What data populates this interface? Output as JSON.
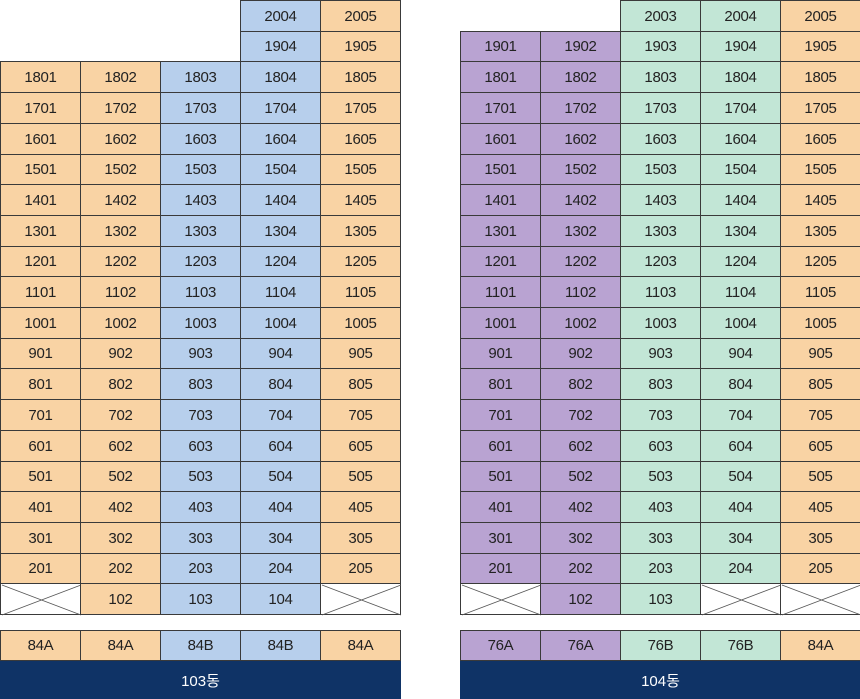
{
  "colors": {
    "orange": "#f9d3a4",
    "blue": "#b7cfec",
    "purple": "#b9a3d2",
    "green": "#c2e6d6",
    "band": "#0f3366"
  },
  "buildings": [
    {
      "name": "103동",
      "column_colors": [
        "orange",
        "orange",
        "blue",
        "blue",
        "orange"
      ],
      "unit_types": [
        "84A",
        "84A",
        "84B",
        "84B",
        "84A"
      ],
      "floors": [
        [
          null,
          null,
          null,
          "2004",
          "2005"
        ],
        [
          null,
          null,
          null,
          "1904",
          "1905"
        ],
        [
          "1801",
          "1802",
          "1803",
          "1804",
          "1805"
        ],
        [
          "1701",
          "1702",
          "1703",
          "1704",
          "1705"
        ],
        [
          "1601",
          "1602",
          "1603",
          "1604",
          "1605"
        ],
        [
          "1501",
          "1502",
          "1503",
          "1504",
          "1505"
        ],
        [
          "1401",
          "1402",
          "1403",
          "1404",
          "1405"
        ],
        [
          "1301",
          "1302",
          "1303",
          "1304",
          "1305"
        ],
        [
          "1201",
          "1202",
          "1203",
          "1204",
          "1205"
        ],
        [
          "1101",
          "1102",
          "1103",
          "1104",
          "1105"
        ],
        [
          "1001",
          "1002",
          "1003",
          "1004",
          "1005"
        ],
        [
          "901",
          "902",
          "903",
          "904",
          "905"
        ],
        [
          "801",
          "802",
          "803",
          "804",
          "805"
        ],
        [
          "701",
          "702",
          "703",
          "704",
          "705"
        ],
        [
          "601",
          "602",
          "603",
          "604",
          "605"
        ],
        [
          "501",
          "502",
          "503",
          "504",
          "505"
        ],
        [
          "401",
          "402",
          "403",
          "404",
          "405"
        ],
        [
          "301",
          "302",
          "303",
          "304",
          "305"
        ],
        [
          "201",
          "202",
          "203",
          "204",
          "205"
        ],
        [
          "X",
          "102",
          "103",
          "104",
          "X"
        ]
      ]
    },
    {
      "name": "104동",
      "column_colors": [
        "purple",
        "purple",
        "green",
        "green",
        "orange"
      ],
      "unit_types": [
        "76A",
        "76A",
        "76B",
        "76B",
        "84A"
      ],
      "floors": [
        [
          null,
          null,
          "2003",
          "2004",
          "2005"
        ],
        [
          "1901",
          "1902",
          "1903",
          "1904",
          "1905"
        ],
        [
          "1801",
          "1802",
          "1803",
          "1804",
          "1805"
        ],
        [
          "1701",
          "1702",
          "1703",
          "1704",
          "1705"
        ],
        [
          "1601",
          "1602",
          "1603",
          "1604",
          "1605"
        ],
        [
          "1501",
          "1502",
          "1503",
          "1504",
          "1505"
        ],
        [
          "1401",
          "1402",
          "1403",
          "1404",
          "1405"
        ],
        [
          "1301",
          "1302",
          "1303",
          "1304",
          "1305"
        ],
        [
          "1201",
          "1202",
          "1203",
          "1204",
          "1205"
        ],
        [
          "1101",
          "1102",
          "1103",
          "1104",
          "1105"
        ],
        [
          "1001",
          "1002",
          "1003",
          "1004",
          "1005"
        ],
        [
          "901",
          "902",
          "903",
          "904",
          "905"
        ],
        [
          "801",
          "802",
          "803",
          "804",
          "805"
        ],
        [
          "701",
          "702",
          "703",
          "704",
          "705"
        ],
        [
          "601",
          "602",
          "603",
          "604",
          "605"
        ],
        [
          "501",
          "502",
          "503",
          "504",
          "505"
        ],
        [
          "401",
          "402",
          "403",
          "404",
          "405"
        ],
        [
          "301",
          "302",
          "303",
          "304",
          "305"
        ],
        [
          "201",
          "202",
          "203",
          "204",
          "205"
        ],
        [
          "X",
          "102",
          "103",
          "X",
          "X"
        ]
      ]
    }
  ]
}
